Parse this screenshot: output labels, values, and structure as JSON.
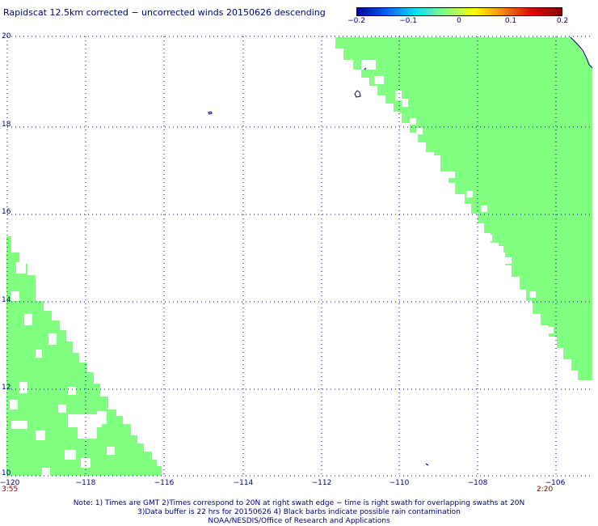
{
  "title": "Rapidscat 12.5km corrected − uncorrected winds 20150626 descending",
  "colorbar": {
    "ticks": [
      "−0.2",
      "−0.1",
      "0",
      "0.1",
      "0.2"
    ],
    "gradient": [
      "#0000a0",
      "#0060ff",
      "#00e0ff",
      "#80ff80",
      "#ffff00",
      "#ff8000",
      "#e00000",
      "#8b0000"
    ]
  },
  "map": {
    "lat_labels": [
      "20",
      "18",
      "16",
      "14",
      "12",
      "10"
    ],
    "lon_labels": [
      "−120",
      "−118",
      "−116",
      "−114",
      "−112",
      "−110",
      "−108",
      "−106"
    ],
    "lat_range": [
      10,
      20
    ],
    "lon_range": [
      -120,
      -105
    ],
    "swath_color": "#80ff80",
    "grid_style": "dotted",
    "coast_color": "#000080"
  },
  "times": {
    "left": "3:55",
    "right": "2:20"
  },
  "notes": [
    "Note: 1) Times are GMT 2)Times correspond to 20N at right swath edge − time is right swath for overlapping swaths at 20N",
    "3)Data buffer is 22 hrs for 20150626 4) Black barbs indicate possible rain contamination",
    "NOAA/NESDIS/Office of Research and Applications"
  ]
}
